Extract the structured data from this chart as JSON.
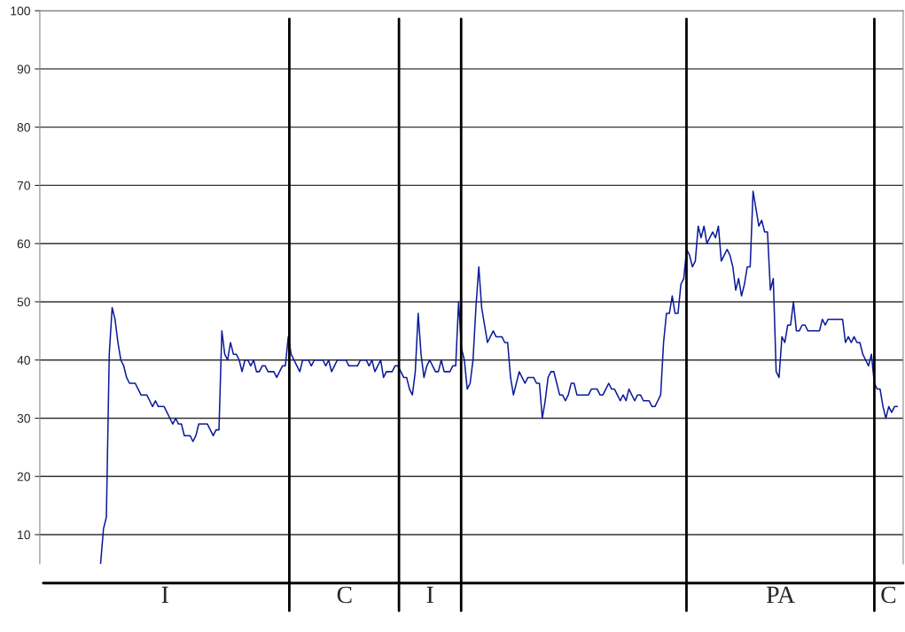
{
  "chart_data": {
    "type": "line",
    "categories": [
      null,
      null,
      null,
      null,
      null,
      null,
      null,
      null,
      null,
      null,
      null,
      null,
      null,
      null,
      null,
      null,
      null,
      null,
      null,
      null,
      null,
      null,
      null,
      null,
      null,
      null,
      null,
      null,
      null,
      null,
      null,
      null,
      null,
      null,
      null,
      null,
      null,
      null,
      null,
      null,
      null,
      null,
      null,
      null,
      null,
      null,
      null,
      null,
      null,
      null,
      null,
      null,
      null,
      null,
      null,
      null,
      null,
      null,
      null,
      null,
      null,
      null,
      null,
      null,
      null,
      null,
      null,
      null,
      null,
      null,
      null,
      null,
      null,
      null,
      null,
      null,
      null,
      null,
      null,
      null,
      null,
      null,
      null,
      null,
      null,
      null,
      null,
      null,
      null,
      null,
      null,
      null,
      null,
      null,
      null,
      null,
      null,
      null,
      null,
      null,
      null,
      null,
      null,
      null,
      null,
      null,
      null,
      null,
      null,
      null,
      null,
      null,
      null,
      null,
      null,
      null,
      null,
      null,
      null,
      null,
      null,
      null,
      null,
      null,
      null,
      null,
      null,
      null,
      null,
      null,
      null,
      null,
      null,
      null,
      null,
      null,
      null,
      null,
      null,
      null,
      null,
      null,
      null,
      null,
      null,
      null,
      null,
      null,
      null,
      null,
      null,
      null,
      null,
      null,
      null,
      null,
      null,
      null,
      null,
      null,
      null,
      null,
      null,
      null,
      null,
      null,
      null,
      null,
      null,
      null,
      null,
      null,
      null,
      null,
      null,
      null,
      null,
      null,
      null,
      null,
      null,
      null,
      null,
      null,
      null,
      null,
      null,
      null,
      null,
      null,
      null,
      null,
      null,
      null,
      null,
      null,
      null,
      null,
      null,
      null,
      null,
      null,
      null,
      null,
      null,
      null,
      null,
      null,
      null,
      null,
      null,
      null,
      null,
      null,
      null,
      null,
      null,
      null,
      null,
      null,
      null,
      null,
      null,
      null,
      null,
      null,
      null,
      null,
      null,
      null,
      null,
      null,
      null,
      null,
      null,
      null,
      null,
      null,
      null,
      null,
      null,
      null,
      null,
      null,
      null,
      null,
      null,
      null,
      null,
      null,
      null,
      null,
      null,
      null,
      null,
      null,
      null,
      null,
      null,
      null,
      null,
      null,
      null,
      null,
      null,
      null,
      null,
      null,
      null,
      null,
      null,
      null,
      null,
      null,
      null,
      null,
      null
    ],
    "series": [
      {
        "color": "#0a1a99",
        "values": [
          5,
          11,
          13,
          41,
          49,
          47,
          43,
          40,
          39,
          37,
          36,
          36,
          36,
          35,
          34,
          34,
          34,
          33,
          32,
          33,
          32,
          32,
          32,
          31,
          30,
          29,
          30,
          29,
          29,
          27,
          27,
          27,
          26,
          27,
          29,
          29,
          29,
          29,
          28,
          27,
          28,
          28,
          45,
          41,
          40,
          43,
          41,
          41,
          40,
          38,
          40,
          40,
          39,
          40,
          38,
          38,
          39,
          39,
          38,
          38,
          38,
          37,
          38,
          39,
          39,
          44,
          41,
          40,
          39,
          38,
          40,
          40,
          40,
          39,
          40,
          40,
          40,
          40,
          39,
          40,
          38,
          39,
          40,
          40,
          40,
          40,
          39,
          39,
          39,
          39,
          40,
          40,
          40,
          39,
          40,
          38,
          39,
          40,
          37,
          38,
          38,
          38,
          39,
          39,
          38,
          37,
          37,
          35,
          34,
          38,
          48,
          41,
          37,
          39,
          40,
          39,
          38,
          38,
          40,
          38,
          38,
          38,
          39,
          39,
          50,
          42,
          40,
          35,
          36,
          40,
          49,
          56,
          49,
          46,
          43,
          44,
          45,
          44,
          44,
          44,
          43,
          43,
          37,
          34,
          36,
          38,
          37,
          36,
          37,
          37,
          37,
          36,
          36,
          30,
          33,
          37,
          38,
          38,
          36,
          34,
          34,
          33,
          34,
          36,
          36,
          34,
          34,
          34,
          34,
          34,
          35,
          35,
          35,
          34,
          34,
          35,
          36,
          35,
          35,
          34,
          33,
          34,
          33,
          35,
          34,
          33,
          34,
          34,
          33,
          33,
          33,
          32,
          32,
          33,
          34,
          43,
          48,
          48,
          51,
          48,
          48,
          53,
          54,
          59,
          58,
          56,
          57,
          63,
          61,
          63,
          60,
          61,
          62,
          61,
          63,
          57,
          58,
          59,
          58,
          56,
          52,
          54,
          51,
          53,
          56,
          56,
          69,
          66,
          63,
          64,
          62,
          62,
          52,
          54,
          38,
          37,
          44,
          43,
          46,
          46,
          50,
          45,
          45,
          46,
          46,
          45,
          45,
          45,
          45,
          45,
          47,
          46,
          47,
          47,
          47,
          47,
          47,
          47,
          43,
          44,
          43,
          44,
          43,
          43,
          41,
          40,
          39,
          41,
          36,
          35,
          35,
          32,
          30,
          32,
          31,
          32,
          32
        ]
      }
    ],
    "ylim": [
      5,
      100
    ],
    "yticks": [
      10,
      20,
      30,
      40,
      50,
      60,
      70,
      80,
      90,
      100
    ],
    "grid": "y",
    "tick_labels": "y",
    "legend": false,
    "annotations": [
      "I",
      "C",
      "I",
      "PA",
      "C"
    ]
  }
}
